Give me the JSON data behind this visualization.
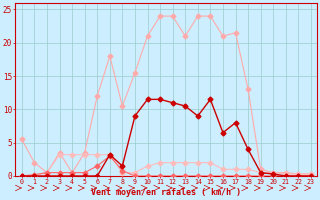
{
  "x": [
    0,
    1,
    2,
    3,
    4,
    5,
    6,
    7,
    8,
    9,
    10,
    11,
    12,
    13,
    14,
    15,
    16,
    17,
    18,
    19,
    20,
    21,
    22,
    23
  ],
  "series1": [
    5.5,
    2.0,
    0.5,
    3.5,
    0.5,
    3.5,
    12.0,
    18.0,
    10.5,
    15.5,
    21.0,
    24.0,
    24.0,
    21.0,
    24.0,
    24.0,
    21.0,
    21.5,
    13.0,
    1.0,
    0.5,
    0.5,
    0.3,
    0.3
  ],
  "series2": [
    0.0,
    0.0,
    0.5,
    3.2,
    3.2,
    3.2,
    3.2,
    3.2,
    0.5,
    0.5,
    1.5,
    2.0,
    2.0,
    2.0,
    2.0,
    2.0,
    1.0,
    1.0,
    1.0,
    0.5,
    0.5,
    0.3,
    0.3,
    0.3
  ],
  "series3": [
    0.0,
    0.0,
    0.0,
    0.0,
    0.0,
    0.0,
    0.0,
    3.2,
    1.5,
    9.0,
    11.5,
    11.5,
    11.0,
    10.5,
    9.0,
    11.5,
    6.5,
    8.0,
    4.0,
    0.5,
    0.3,
    0.0,
    0.0,
    0.0
  ],
  "series4": [
    0.0,
    0.2,
    0.5,
    0.5,
    0.5,
    0.5,
    1.5,
    3.0,
    0.8,
    0.0,
    0.0,
    0.0,
    0.0,
    0.0,
    0.0,
    0.0,
    0.0,
    0.0,
    0.0,
    0.0,
    0.0,
    0.0,
    0.0,
    0.0
  ],
  "color1": "#ffaaaa",
  "color2": "#ffbbbb",
  "color3": "#cc0000",
  "color4": "#ff6666",
  "bg_color": "#cceeff",
  "grid_color": "#99cccc",
  "axis_color": "#cc0000",
  "text_color": "#cc0000",
  "xlabel": "Vent moyen/en rafales ( km/h )",
  "ylim": [
    0,
    26
  ],
  "yticks": [
    0,
    5,
    10,
    15,
    20,
    25
  ],
  "xlim": [
    -0.5,
    23.5
  ]
}
